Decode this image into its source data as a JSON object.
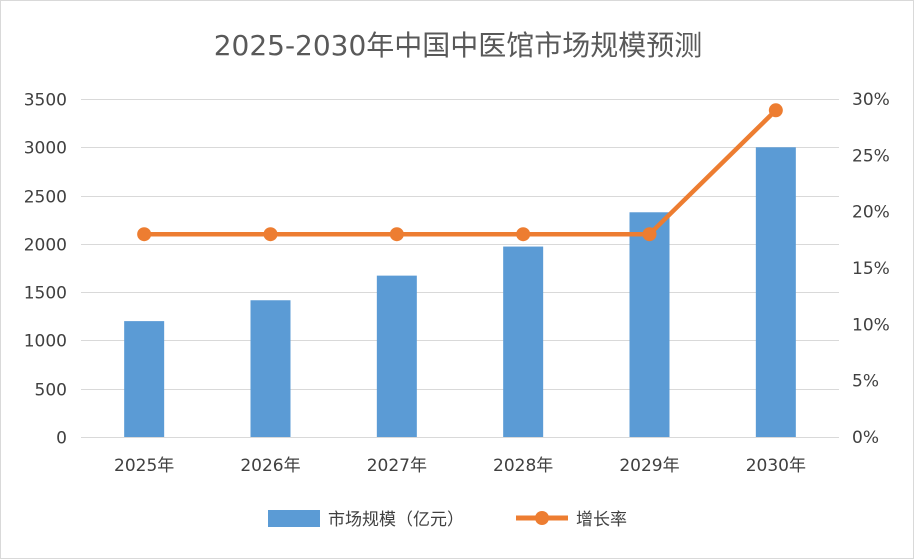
{
  "chart_data": {
    "type": "bar",
    "title": "2025-2030年中国中医馆市场规模预测",
    "categories": [
      "2025年",
      "2026年",
      "2027年",
      "2028年",
      "2029年",
      "2030年"
    ],
    "series": [
      {
        "name": "市场规模（亿元）",
        "type": "bar",
        "axis": "left",
        "color": "#5b9bd5",
        "values": [
          1200,
          1416,
          1671,
          1972,
          2327,
          3000
        ]
      },
      {
        "name": "增长率",
        "type": "line",
        "axis": "right",
        "color": "#ed7d31",
        "marker": "circle",
        "values": [
          0.18,
          0.18,
          0.18,
          0.18,
          0.18,
          0.29
        ]
      }
    ],
    "y_left": {
      "range": [
        0,
        3500
      ],
      "ticks": [
        0,
        500,
        1000,
        1500,
        2000,
        2500,
        3000,
        3500
      ],
      "tick_labels": [
        "0",
        "500",
        "1000",
        "1500",
        "2000",
        "2500",
        "3000",
        "3500"
      ]
    },
    "y_right": {
      "range": [
        0,
        0.3
      ],
      "ticks": [
        0,
        0.05,
        0.1,
        0.15,
        0.2,
        0.25,
        0.3
      ],
      "tick_labels": [
        "0%",
        "5%",
        "10%",
        "15%",
        "20%",
        "25%",
        "30%"
      ]
    },
    "grid": true,
    "legend": "bottom"
  }
}
